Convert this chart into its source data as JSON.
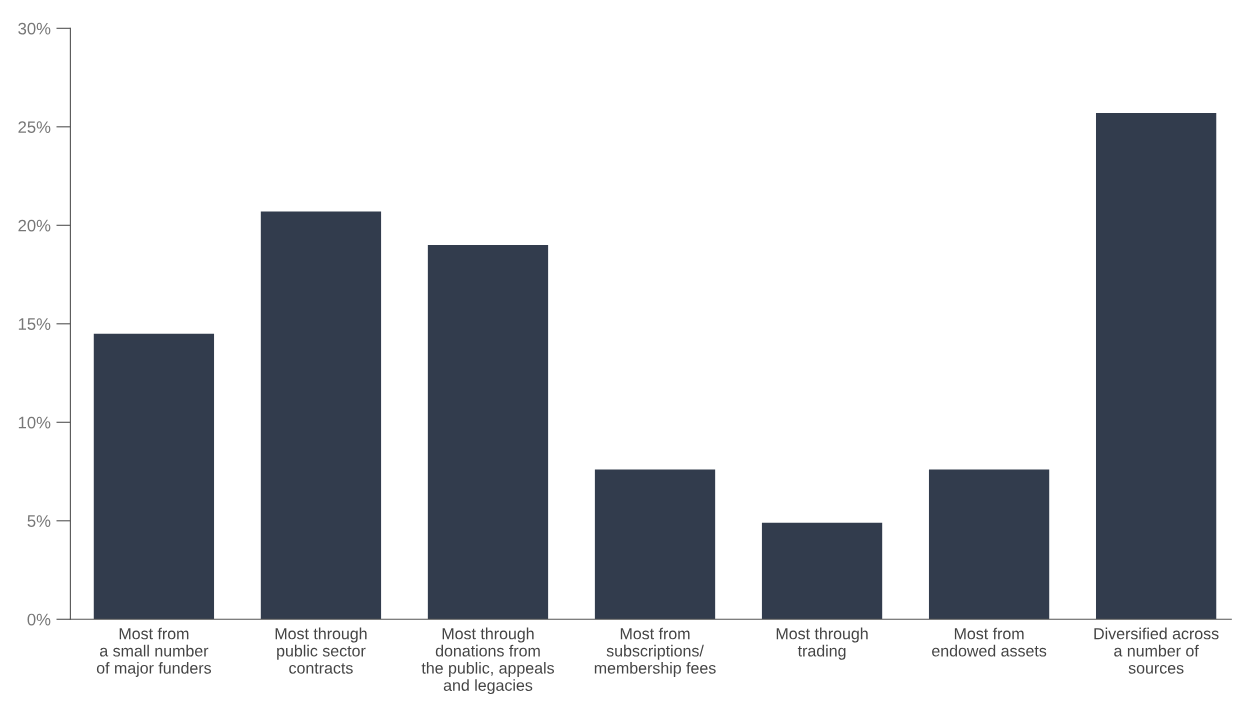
{
  "chart_data": {
    "type": "bar",
    "categories": [
      "Most from\na small number\nof major funders",
      "Most through\npublic sector\ncontracts",
      "Most through\ndonations from\nthe public, appeals\nand legacies",
      "Most from\nsubscriptions/\nmembership fees",
      "Most through\ntrading",
      "Most from\nendowed assets",
      "Diversified across\na number of\nsources"
    ],
    "values": [
      14.5,
      20.7,
      19.0,
      7.6,
      4.9,
      7.6,
      25.7
    ],
    "color": "#323c4d",
    "ylim": [
      0,
      30
    ],
    "yticks": [
      {
        "value": 0,
        "label": "0%"
      },
      {
        "value": 5,
        "label": "5%"
      },
      {
        "value": 10,
        "label": "10%"
      },
      {
        "value": 15,
        "label": "15%"
      },
      {
        "value": 20,
        "label": "20%"
      },
      {
        "value": 25,
        "label": "25%"
      },
      {
        "value": 30,
        "label": "30%"
      }
    ],
    "grid": false
  }
}
